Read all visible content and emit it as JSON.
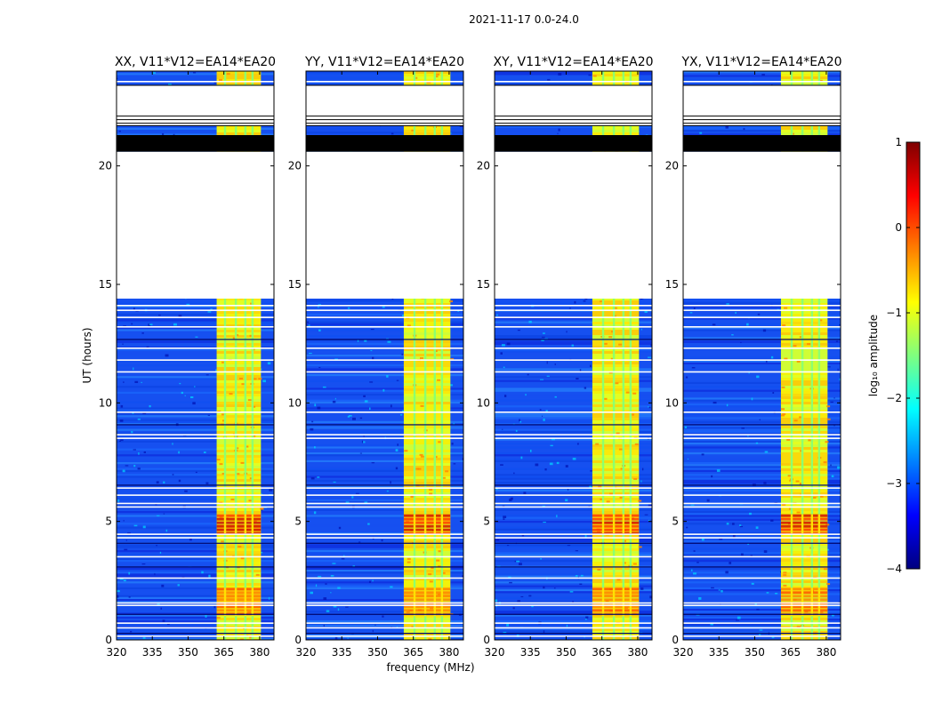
{
  "chart_data": {
    "type": "heatmap",
    "suptitle": "2021-11-17 0.0-24.0",
    "xlabel": "frequency (MHz)",
    "ylabel": "UT (hours)",
    "xlim": [
      320,
      386
    ],
    "ylim": [
      0,
      24
    ],
    "xticks": [
      320,
      335,
      350,
      365,
      380
    ],
    "yticks": [
      0,
      5,
      10,
      15,
      20
    ],
    "panels": [
      {
        "title": "XX, V11*V12=EA14*EA20",
        "polarization": "XX",
        "band_start": 362
      },
      {
        "title": "YY, V11*V12=EA14*EA20",
        "polarization": "YY",
        "band_start": 361
      },
      {
        "title": "XY, V11*V12=EA14*EA20",
        "polarization": "XY",
        "band_start": 361
      },
      {
        "title": "YX, V11*V12=EA14*EA20",
        "polarization": "YX",
        "band_start": 361
      }
    ],
    "band_end": 380.5,
    "band_channel_gaps_mhz": [
      365.5,
      370,
      374,
      377
    ],
    "flagged_hours": [
      [
        14.4,
        20.6
      ],
      [
        21.7,
        23.4
      ]
    ],
    "dense_flag_hours": [
      20.6,
      21.3
    ],
    "bright_burst_hours": [
      [
        4.5,
        5.3
      ],
      [
        1,
        2.2
      ]
    ],
    "colorbar": {
      "label": "log₁₀ amplitude",
      "min": -4,
      "max": 1,
      "ticks": [
        1,
        0,
        -1,
        -2,
        -3,
        -4
      ],
      "tick_labels": [
        "1",
        "0",
        "−1",
        "−2",
        "−3",
        "−4"
      ],
      "colormap": [
        "#00007f",
        "#0000ff",
        "#007fff",
        "#00ffff",
        "#7fff7f",
        "#ffff00",
        "#ff7f00",
        "#ff0000",
        "#7f0000"
      ]
    }
  }
}
